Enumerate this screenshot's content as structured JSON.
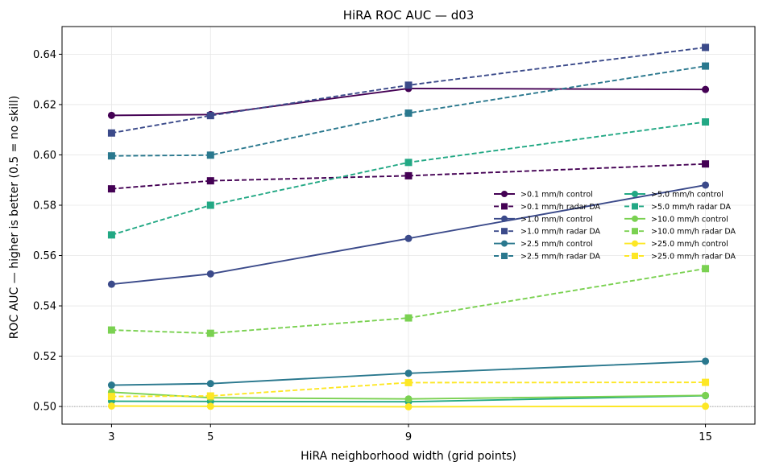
{
  "chart_data": {
    "type": "line",
    "title": "HiRA ROC AUC — d03",
    "xlabel": "HiRA neighborhood width (grid points)",
    "ylabel": "ROC AUC — higher is better (0.5 = no skill)",
    "x": [
      3,
      5,
      9,
      15
    ],
    "x_ticks": [
      "3",
      "5",
      "9",
      "15"
    ],
    "xlim": [
      2.0,
      16.0
    ],
    "ylim": [
      0.493,
      0.651
    ],
    "y_ticks": [
      "0.50",
      "0.52",
      "0.54",
      "0.56",
      "0.58",
      "0.60",
      "0.62",
      "0.64"
    ],
    "y_tick_values": [
      0.5,
      0.52,
      0.54,
      0.56,
      0.58,
      0.6,
      0.62,
      0.64
    ],
    "reference_line": 0.5,
    "grid": true,
    "legend_placement": "center-right",
    "series": [
      {
        "name": ">0.1 mm/h control",
        "color": "#440154",
        "style": "solid",
        "marker": "circle",
        "values": [
          0.6157,
          0.616,
          0.6264,
          0.626
        ]
      },
      {
        "name": ">0.1 mm/h radar DA",
        "color": "#440154",
        "style": "dashed",
        "marker": "square",
        "values": [
          0.5865,
          0.5897,
          0.5917,
          0.5964
        ]
      },
      {
        "name": ">1.0 mm/h control",
        "color": "#3b4a8a",
        "style": "solid",
        "marker": "circle",
        "values": [
          0.5486,
          0.5527,
          0.5668,
          0.588
        ]
      },
      {
        "name": ">1.0 mm/h radar DA",
        "color": "#3b4a8a",
        "style": "dashed",
        "marker": "square",
        "values": [
          0.6087,
          0.6156,
          0.6277,
          0.6427
        ]
      },
      {
        "name": ">2.5 mm/h control",
        "color": "#2a788e",
        "style": "solid",
        "marker": "circle",
        "values": [
          0.5085,
          0.5091,
          0.5132,
          0.518
        ]
      },
      {
        "name": ">2.5 mm/h radar DA",
        "color": "#2a788e",
        "style": "dashed",
        "marker": "square",
        "values": [
          0.5996,
          0.5999,
          0.6166,
          0.6353
        ]
      },
      {
        "name": ">5.0 mm/h control",
        "color": "#22a884",
        "style": "solid",
        "marker": "circle",
        "values": [
          0.5021,
          0.502,
          0.5019,
          0.5043
        ]
      },
      {
        "name": ">5.0 mm/h radar DA",
        "color": "#22a884",
        "style": "dashed",
        "marker": "square",
        "values": [
          0.5682,
          0.58,
          0.597,
          0.6131
        ]
      },
      {
        "name": ">10.0 mm/h control",
        "color": "#7ad151",
        "style": "solid",
        "marker": "circle",
        "values": [
          0.5057,
          0.5035,
          0.503,
          0.5044
        ]
      },
      {
        "name": ">10.0 mm/h radar DA",
        "color": "#7ad151",
        "style": "dashed",
        "marker": "square",
        "values": [
          0.5304,
          0.5291,
          0.5352,
          0.5548
        ]
      },
      {
        "name": ">25.0 mm/h control",
        "color": "#fde725",
        "style": "solid",
        "marker": "circle",
        "values": [
          0.5002,
          0.5001,
          0.4999,
          0.5001
        ]
      },
      {
        "name": ">25.0 mm/h radar DA",
        "color": "#fde725",
        "style": "dashed",
        "marker": "square",
        "values": [
          0.504,
          0.5042,
          0.5095,
          0.5096
        ]
      }
    ]
  }
}
